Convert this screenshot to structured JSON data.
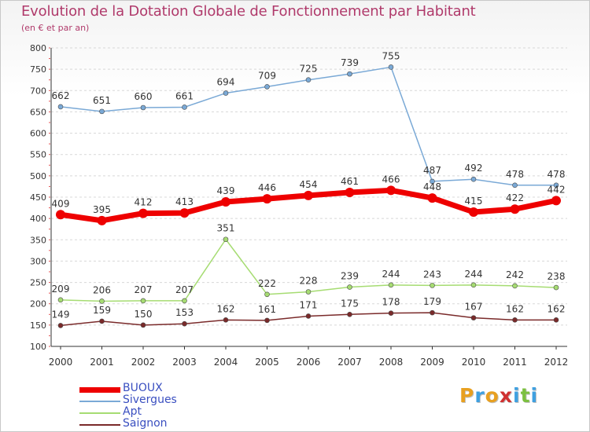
{
  "title": "Evolution de la Dotation Globale de Fonctionnement par Habitant",
  "subtitle": "(en € et par an)",
  "logo": {
    "text": "Proxiti"
  },
  "colors": {
    "title": "#b03a6b",
    "legend_text": "#3a4fc0",
    "grid": "#d8d8d8",
    "axis": "#333333"
  },
  "chart_data": {
    "type": "line",
    "title": "Evolution de la Dotation Globale de Fonctionnement par Habitant",
    "subtitle": "(en € et par an)",
    "x": [
      "2000",
      "2001",
      "2002",
      "2003",
      "2004",
      "2005",
      "2006",
      "2007",
      "2008",
      "2009",
      "2010",
      "2011",
      "2012"
    ],
    "ylim": [
      100,
      800
    ],
    "yticks": [
      100,
      150,
      200,
      250,
      300,
      350,
      400,
      450,
      500,
      550,
      600,
      650,
      700,
      750,
      800
    ],
    "grid": "horizontal dashed",
    "legend_position": "bottom-left",
    "series": [
      {
        "name": "BUOUX",
        "color": "#ee0000",
        "width": 7,
        "marker": 6,
        "values": [
          409,
          395,
          412,
          413,
          439,
          446,
          454,
          461,
          466,
          448,
          415,
          422,
          442
        ]
      },
      {
        "name": "Sivergues",
        "color": "#7aa9d6",
        "width": 1.5,
        "marker": 3,
        "values": [
          662,
          651,
          660,
          661,
          694,
          709,
          725,
          739,
          755,
          487,
          492,
          478,
          478
        ]
      },
      {
        "name": "Apt",
        "color": "#a6dc72",
        "width": 1.5,
        "marker": 3,
        "values": [
          209,
          206,
          207,
          207,
          351,
          222,
          228,
          239,
          244,
          243,
          244,
          242,
          238
        ]
      },
      {
        "name": "Saignon",
        "color": "#7a2a2a",
        "width": 1.5,
        "marker": 3,
        "values": [
          149,
          159,
          150,
          153,
          162,
          161,
          171,
          175,
          178,
          179,
          167,
          162,
          162
        ]
      }
    ]
  }
}
